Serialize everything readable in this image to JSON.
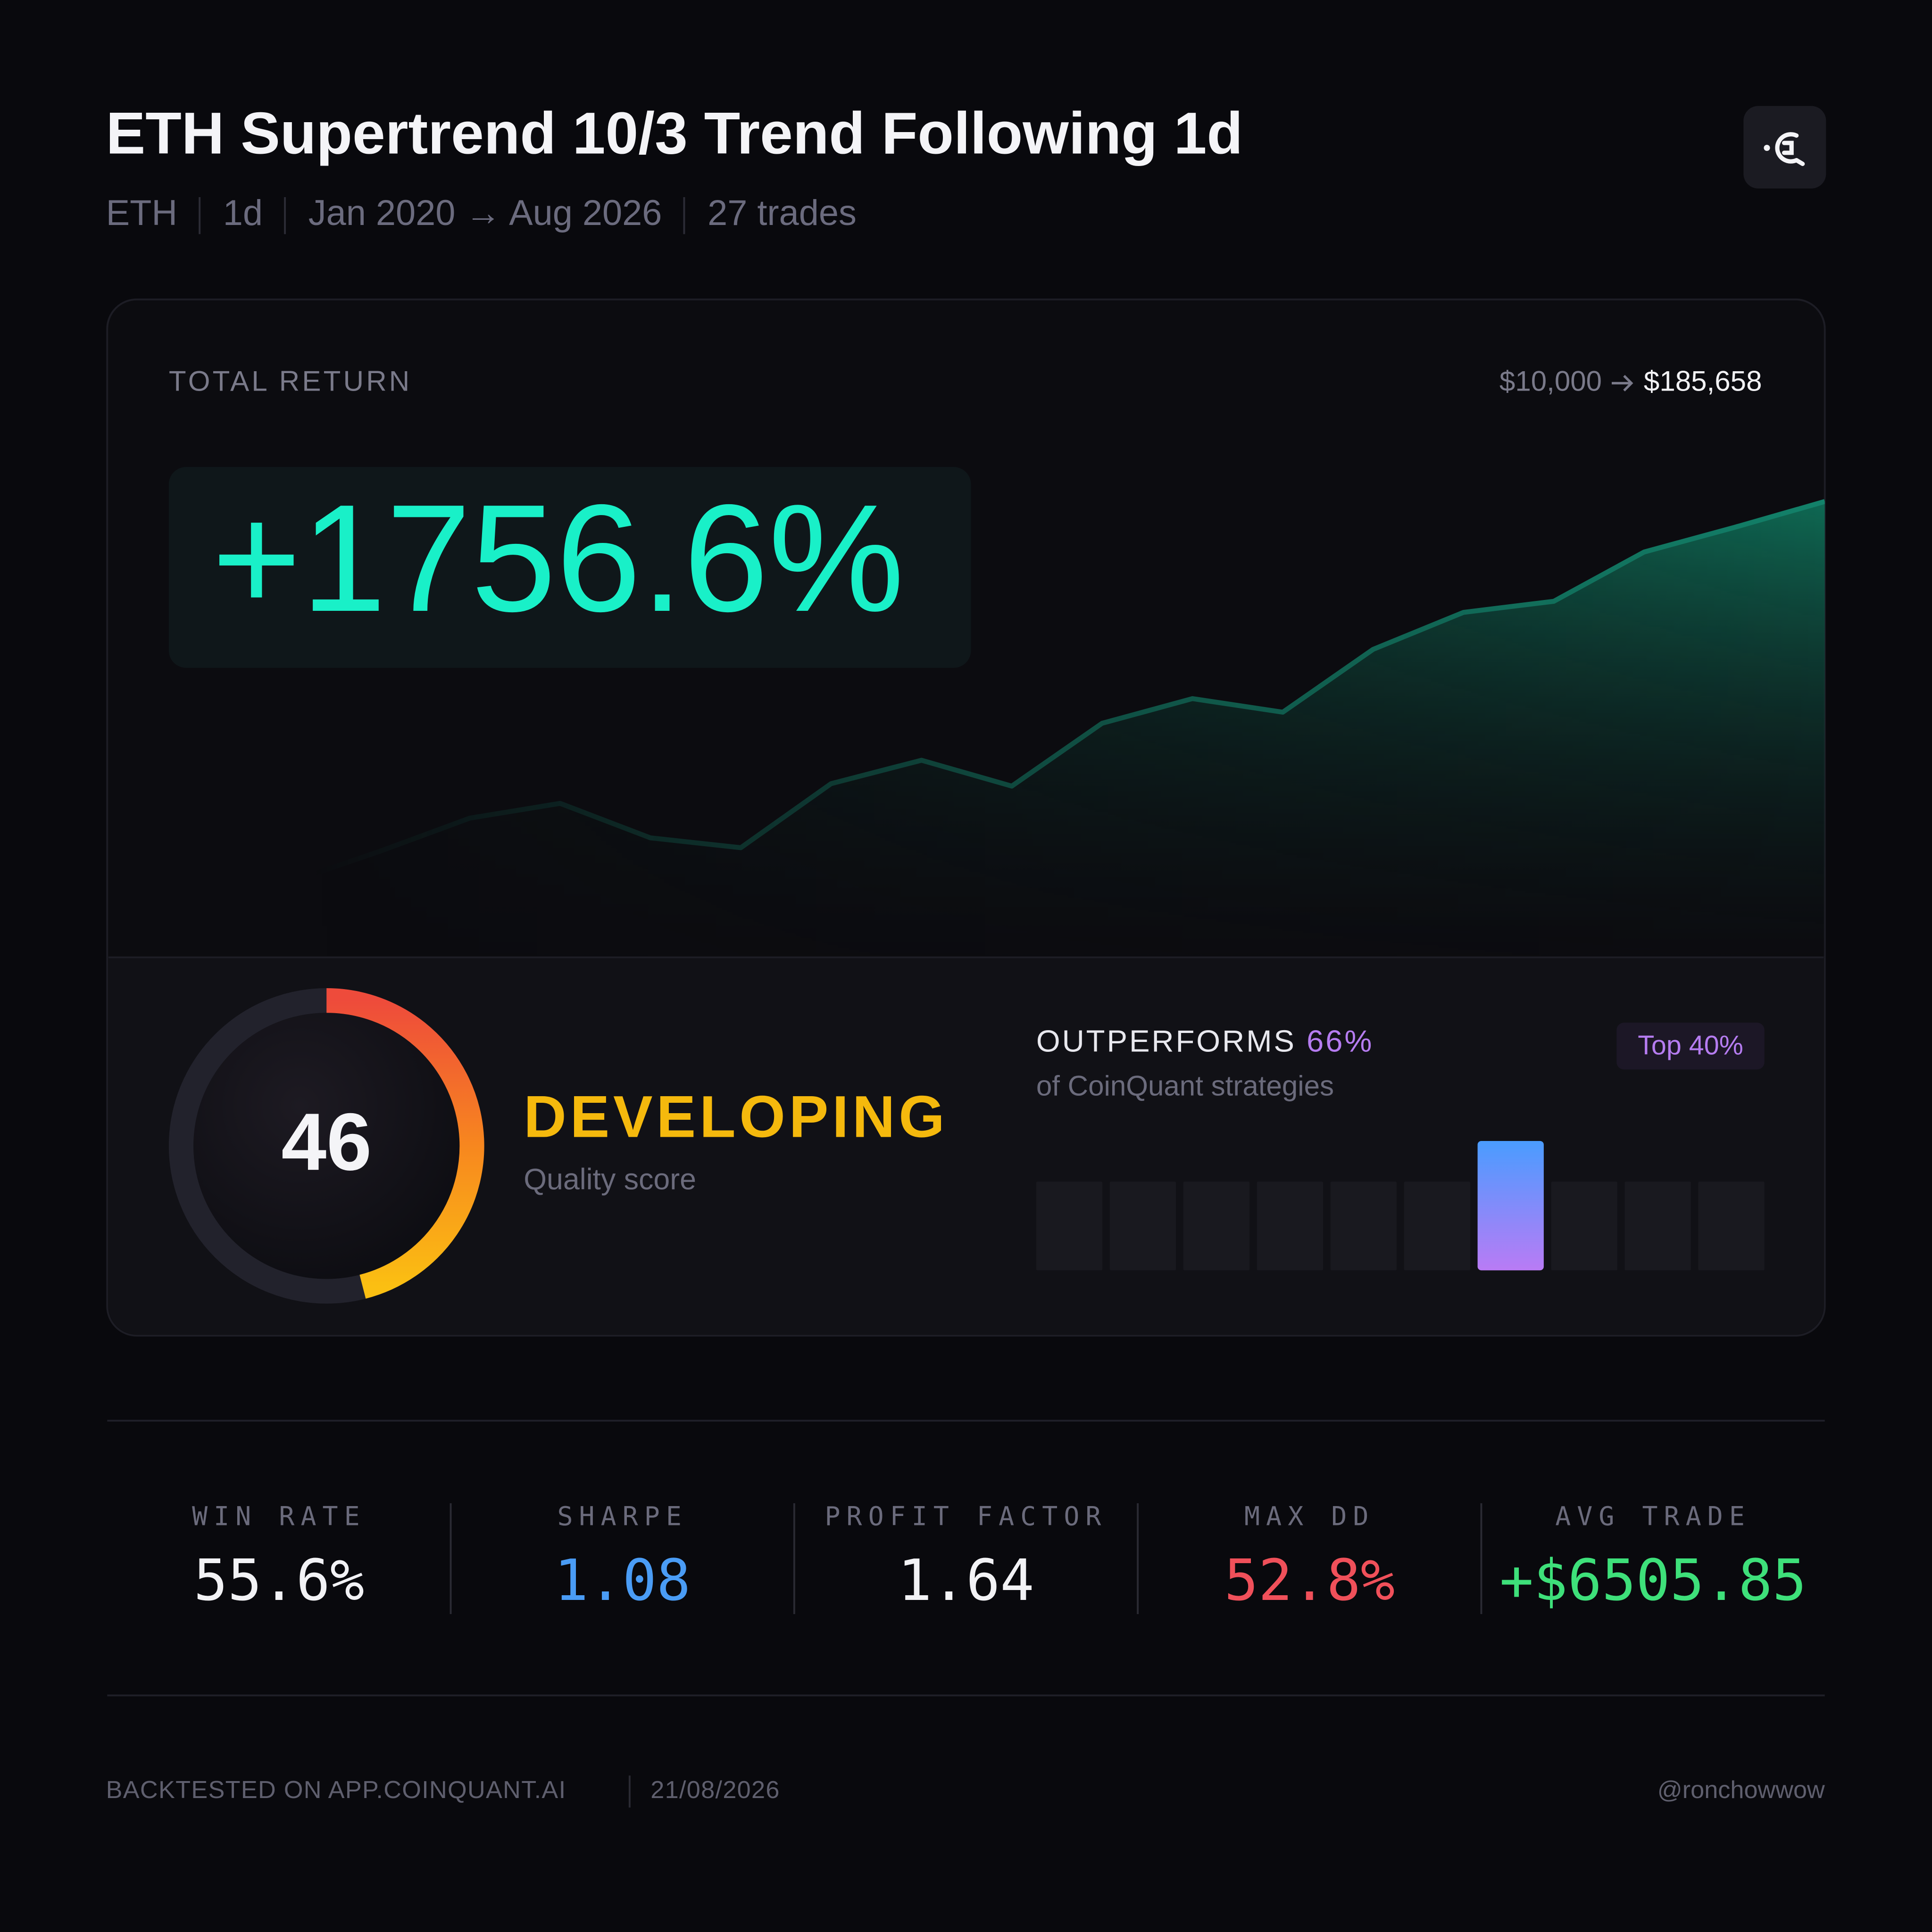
{
  "header": {
    "title": "ETH Supertrend 10/3 Trend Following 1d",
    "meta": [
      "ETH",
      "1d",
      "Jan 2020 → Aug 2026",
      "27 trades"
    ]
  },
  "total_return": {
    "label": "TOTAL RETURN",
    "from": "$10,000",
    "to": "$185,658",
    "value": "+1756.6%"
  },
  "chart_data": [
    {
      "type": "area",
      "values": [
        30,
        45,
        60,
        85,
        112,
        124,
        96,
        88,
        140,
        159,
        138,
        189,
        209,
        198,
        249,
        279,
        288,
        328,
        348,
        369
      ],
      "ylim": [
        0,
        400
      ],
      "color": "#13826a"
    },
    {
      "type": "bar",
      "values": [
        72,
        72,
        72,
        72,
        72,
        72,
        105,
        72,
        72,
        72
      ],
      "highlight": 6,
      "ylim": [
        0,
        110
      ],
      "color": "#19191f"
    }
  ],
  "quality": {
    "score": 46,
    "range": [
      0,
      100
    ],
    "label": "DEVELOPING",
    "caption": "Quality score"
  },
  "percentile": {
    "label": "OUTPERFORMS",
    "value": "66%",
    "caption": "of CoinQuant strategies",
    "badge": "Top 40%"
  },
  "stats": [
    {
      "label": "WIN RATE",
      "value": "55.6%",
      "color": "#f2f2f5"
    },
    {
      "label": "SHARPE",
      "value": "1.08",
      "color": "#4a9cf5"
    },
    {
      "label": "PROFIT FACTOR",
      "value": "1.64",
      "color": "#f2f2f5"
    },
    {
      "label": "MAX DD",
      "value": "52.8%",
      "color": "#f0505a"
    },
    {
      "label": "AVG TRADE",
      "value": "+$6505.85",
      "color": "#3ee07a"
    }
  ],
  "footer": {
    "source": "BACKTESTED ON APP.COINQUANT.AI",
    "date": "21/08/2026",
    "handle": "@ronchowwow"
  }
}
